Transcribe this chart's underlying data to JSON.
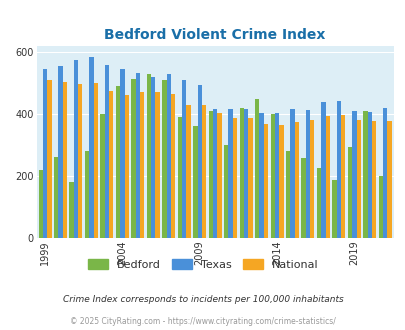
{
  "title": "Bedford Violent Crime Index",
  "years": [
    1999,
    2000,
    2001,
    2002,
    2003,
    2004,
    2005,
    2006,
    2007,
    2008,
    2009,
    2010,
    2011,
    2012,
    2013,
    2014,
    2015,
    2016,
    2017,
    2018,
    2019,
    2020,
    2021
  ],
  "bedford": [
    220,
    262,
    180,
    280,
    400,
    490,
    515,
    530,
    510,
    390,
    360,
    410,
    300,
    420,
    450,
    400,
    280,
    258,
    225,
    185,
    295,
    410,
    200
  ],
  "texas": [
    545,
    555,
    575,
    585,
    558,
    547,
    532,
    520,
    530,
    510,
    495,
    415,
    415,
    415,
    405,
    402,
    415,
    412,
    440,
    442,
    410,
    408,
    420
  ],
  "national": [
    510,
    505,
    498,
    502,
    475,
    463,
    472,
    472,
    465,
    430,
    430,
    405,
    388,
    387,
    368,
    365,
    373,
    382,
    395,
    398,
    382,
    378,
    378
  ],
  "bedford_color": "#7ab648",
  "texas_color": "#4a90d9",
  "national_color": "#f5a623",
  "bg_color": "#ddeef6",
  "ylim": [
    0,
    620
  ],
  "yticks": [
    0,
    200,
    400,
    600
  ],
  "xticks": [
    1999,
    2004,
    2009,
    2014,
    2019
  ],
  "subtitle": "Crime Index corresponds to incidents per 100,000 inhabitants",
  "footer": "© 2025 CityRating.com - https://www.cityrating.com/crime-statistics/",
  "legend_labels": [
    "Bedford",
    "Texas",
    "National"
  ]
}
